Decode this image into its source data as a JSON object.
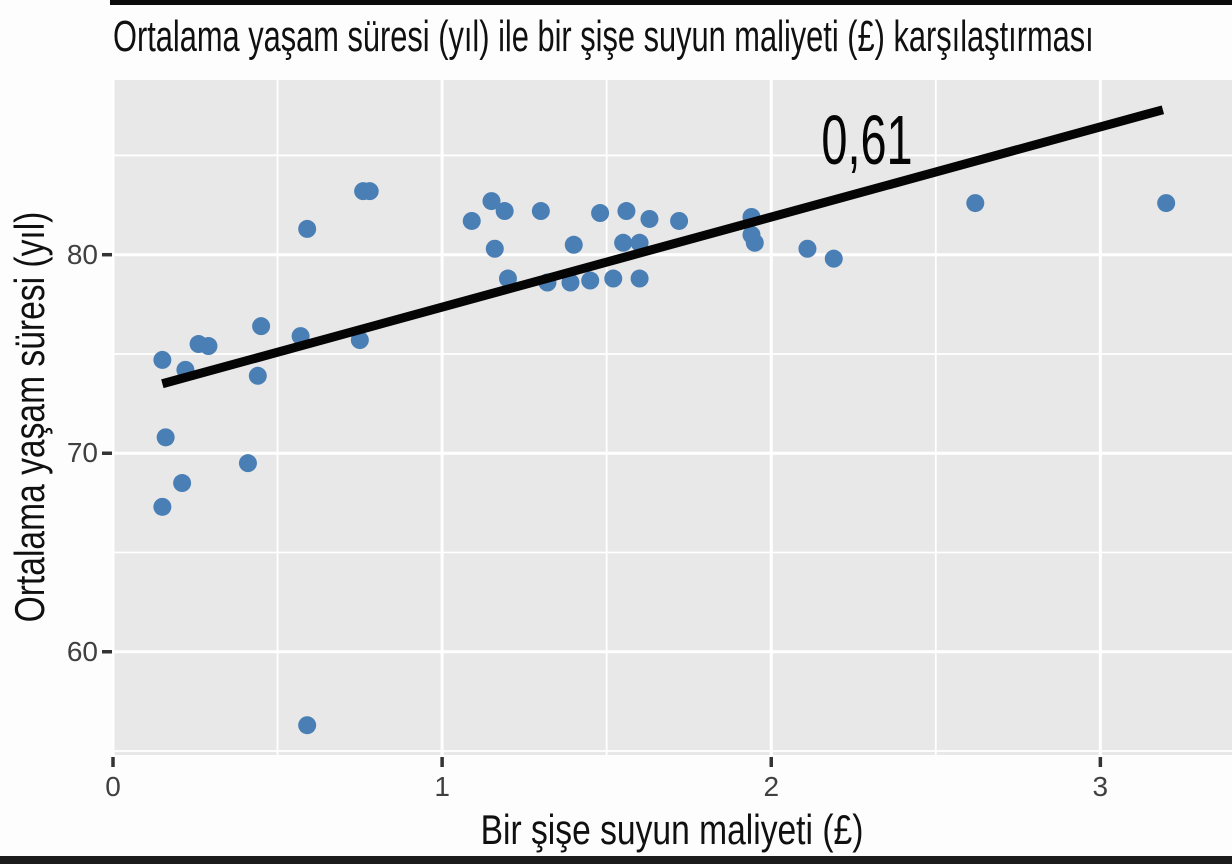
{
  "chart_data": {
    "type": "scatter",
    "title": "Ortalama yaşam süresi (yıl) ile bir şişe suyun maliyeti (£) karşılaştırması",
    "xlabel": "Bir şişe suyun maliyeti (£)",
    "ylabel": "Ortalama yaşam süresi (yıl)",
    "annotation": {
      "text": "0,61",
      "x": 2.29,
      "y": 85.8
    },
    "x_ticks": {
      "values": [
        0,
        1,
        2,
        3
      ],
      "labels": [
        "0",
        "1",
        "2",
        "3"
      ]
    },
    "y_ticks": {
      "values": [
        60,
        70,
        80
      ],
      "labels": [
        "60",
        "70",
        "80"
      ]
    },
    "x_minor": [
      0.5,
      1.5,
      2.5
    ],
    "y_minor": [
      55,
      65,
      75,
      85
    ],
    "xlim": [
      0,
      3.4
    ],
    "ylim": [
      54.8,
      88.8
    ],
    "grid": true,
    "legend": "none",
    "trend_line": {
      "x1": 0.15,
      "y1": 73.5,
      "x2": 3.19,
      "y2": 87.3
    },
    "points": [
      [
        0.15,
        74.7
      ],
      [
        0.15,
        67.3
      ],
      [
        0.16,
        70.8
      ],
      [
        0.21,
        68.5
      ],
      [
        0.22,
        74.2
      ],
      [
        0.26,
        75.5
      ],
      [
        0.29,
        75.4
      ],
      [
        0.41,
        69.5
      ],
      [
        0.44,
        73.9
      ],
      [
        0.45,
        76.4
      ],
      [
        0.57,
        75.9
      ],
      [
        0.59,
        81.3
      ],
      [
        0.59,
        56.3
      ],
      [
        0.75,
        75.7
      ],
      [
        0.76,
        83.2
      ],
      [
        0.78,
        83.2
      ],
      [
        1.09,
        81.7
      ],
      [
        1.15,
        82.7
      ],
      [
        1.19,
        82.2
      ],
      [
        1.16,
        80.3
      ],
      [
        1.2,
        78.8
      ],
      [
        1.3,
        82.2
      ],
      [
        1.32,
        78.6
      ],
      [
        1.4,
        80.5
      ],
      [
        1.39,
        78.6
      ],
      [
        1.45,
        78.7
      ],
      [
        1.48,
        82.1
      ],
      [
        1.52,
        78.8
      ],
      [
        1.55,
        80.6
      ],
      [
        1.6,
        80.6
      ],
      [
        1.56,
        82.2
      ],
      [
        1.6,
        78.8
      ],
      [
        1.63,
        81.8
      ],
      [
        1.72,
        81.7
      ],
      [
        1.94,
        81.9
      ],
      [
        1.94,
        81.0
      ],
      [
        1.95,
        80.6
      ],
      [
        2.11,
        80.3
      ],
      [
        2.19,
        79.8
      ],
      [
        2.62,
        82.6
      ],
      [
        3.2,
        82.6
      ]
    ],
    "colors": {
      "point": "#4a7fb5",
      "trend": "#050505",
      "panel_bg": "#e8e8e8",
      "grid": "#ffffff",
      "tick_mark": "#333333",
      "tick_text": "#404040"
    }
  }
}
